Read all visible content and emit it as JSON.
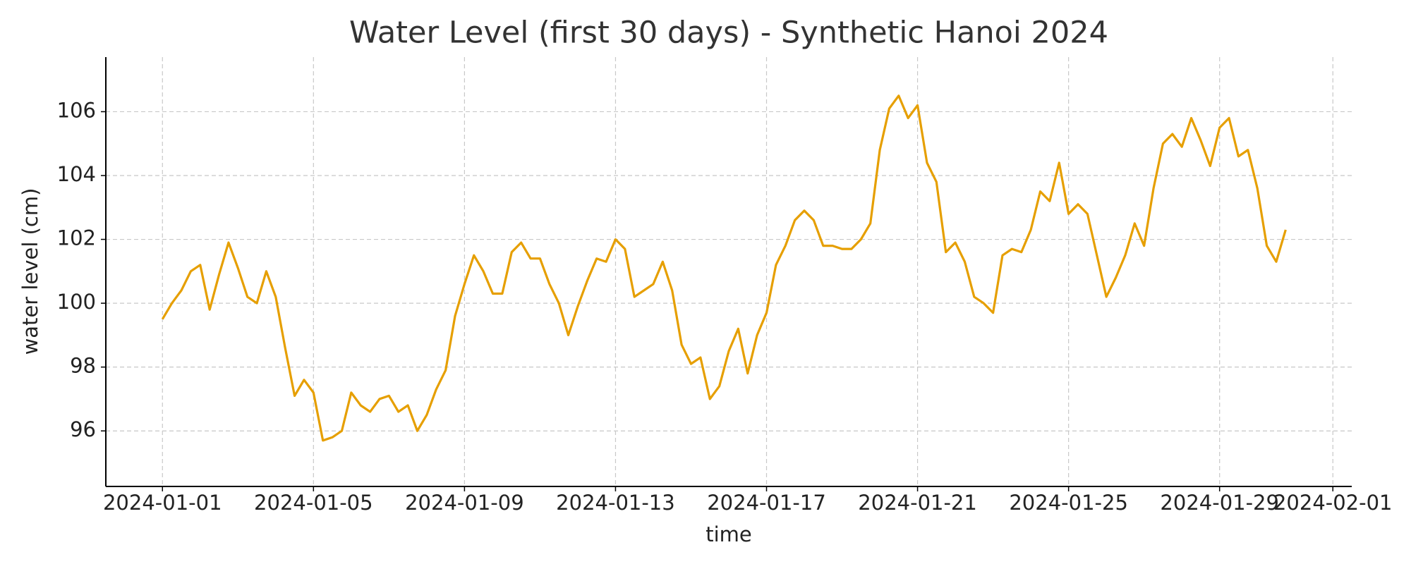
{
  "chart_data": {
    "type": "line",
    "title": "Water Level (first 30 days) - Synthetic Hanoi 2024",
    "x_label": "time",
    "y_label": "water level (cm)",
    "x": [
      "2024-01-01T00:00",
      "2024-01-01T06:00",
      "2024-01-01T12:00",
      "2024-01-01T18:00",
      "2024-01-02T00:00",
      "2024-01-02T06:00",
      "2024-01-02T12:00",
      "2024-01-02T18:00",
      "2024-01-03T00:00",
      "2024-01-03T06:00",
      "2024-01-03T12:00",
      "2024-01-03T18:00",
      "2024-01-04T00:00",
      "2024-01-04T06:00",
      "2024-01-04T12:00",
      "2024-01-04T18:00",
      "2024-01-05T00:00",
      "2024-01-05T06:00",
      "2024-01-05T12:00",
      "2024-01-05T18:00",
      "2024-01-06T00:00",
      "2024-01-06T06:00",
      "2024-01-06T12:00",
      "2024-01-06T18:00",
      "2024-01-07T00:00",
      "2024-01-07T06:00",
      "2024-01-07T12:00",
      "2024-01-07T18:00",
      "2024-01-08T00:00",
      "2024-01-08T06:00",
      "2024-01-08T12:00",
      "2024-01-08T18:00",
      "2024-01-09T00:00",
      "2024-01-09T06:00",
      "2024-01-09T12:00",
      "2024-01-09T18:00",
      "2024-01-10T00:00",
      "2024-01-10T06:00",
      "2024-01-10T12:00",
      "2024-01-10T18:00",
      "2024-01-11T00:00",
      "2024-01-11T06:00",
      "2024-01-11T12:00",
      "2024-01-11T18:00",
      "2024-01-12T00:00",
      "2024-01-12T06:00",
      "2024-01-12T12:00",
      "2024-01-12T18:00",
      "2024-01-13T00:00",
      "2024-01-13T06:00",
      "2024-01-13T12:00",
      "2024-01-13T18:00",
      "2024-01-14T00:00",
      "2024-01-14T06:00",
      "2024-01-14T12:00",
      "2024-01-14T18:00",
      "2024-01-15T00:00",
      "2024-01-15T06:00",
      "2024-01-15T12:00",
      "2024-01-15T18:00",
      "2024-01-16T00:00",
      "2024-01-16T06:00",
      "2024-01-16T12:00",
      "2024-01-16T18:00",
      "2024-01-17T00:00",
      "2024-01-17T06:00",
      "2024-01-17T12:00",
      "2024-01-17T18:00",
      "2024-01-18T00:00",
      "2024-01-18T06:00",
      "2024-01-18T12:00",
      "2024-01-18T18:00",
      "2024-01-19T00:00",
      "2024-01-19T06:00",
      "2024-01-19T12:00",
      "2024-01-19T18:00",
      "2024-01-20T00:00",
      "2024-01-20T06:00",
      "2024-01-20T12:00",
      "2024-01-20T18:00",
      "2024-01-21T00:00",
      "2024-01-21T06:00",
      "2024-01-21T12:00",
      "2024-01-21T18:00",
      "2024-01-22T00:00",
      "2024-01-22T06:00",
      "2024-01-22T12:00",
      "2024-01-22T18:00",
      "2024-01-23T00:00",
      "2024-01-23T06:00",
      "2024-01-23T12:00",
      "2024-01-23T18:00",
      "2024-01-24T00:00",
      "2024-01-24T06:00",
      "2024-01-24T12:00",
      "2024-01-24T18:00",
      "2024-01-25T00:00",
      "2024-01-25T06:00",
      "2024-01-25T12:00",
      "2024-01-25T18:00",
      "2024-01-26T00:00",
      "2024-01-26T06:00",
      "2024-01-26T12:00",
      "2024-01-26T18:00",
      "2024-01-27T00:00",
      "2024-01-27T06:00",
      "2024-01-27T12:00",
      "2024-01-27T18:00",
      "2024-01-28T00:00",
      "2024-01-28T06:00",
      "2024-01-28T12:00",
      "2024-01-28T18:00",
      "2024-01-29T00:00",
      "2024-01-29T06:00",
      "2024-01-29T12:00",
      "2024-01-29T18:00",
      "2024-01-30T00:00",
      "2024-01-30T06:00",
      "2024-01-30T12:00",
      "2024-01-30T18:00"
    ],
    "series": [
      {
        "color": "#e69f00",
        "values": [
          99.5,
          100.0,
          100.4,
          101.0,
          101.2,
          99.8,
          100.9,
          101.9,
          101.1,
          100.2,
          100.0,
          101.0,
          100.2,
          98.6,
          97.1,
          97.6,
          97.2,
          95.7,
          95.8,
          96.0,
          97.2,
          96.8,
          96.6,
          97.0,
          97.1,
          96.6,
          96.8,
          96.0,
          96.5,
          97.3,
          97.9,
          99.6,
          100.6,
          101.5,
          101.0,
          100.3,
          100.3,
          101.6,
          101.9,
          101.4,
          101.4,
          100.6,
          100.0,
          99.0,
          99.9,
          100.7,
          101.4,
          101.3,
          102.0,
          101.7,
          100.2,
          100.4,
          100.6,
          101.3,
          100.4,
          98.7,
          98.1,
          98.3,
          97.0,
          97.4,
          98.5,
          99.2,
          97.8,
          99.0,
          99.7,
          101.2,
          101.8,
          102.6,
          102.9,
          102.6,
          101.8,
          101.8,
          101.7,
          101.7,
          102.0,
          102.5,
          104.8,
          106.1,
          106.5,
          105.8,
          106.2,
          104.4,
          103.8,
          101.6,
          101.9,
          101.3,
          100.2,
          100.0,
          99.7,
          101.5,
          101.7,
          101.6,
          102.3,
          103.5,
          103.2,
          104.4,
          102.8,
          103.1,
          102.8,
          101.5,
          100.2,
          100.8,
          101.5,
          102.5,
          101.8,
          103.6,
          105.0,
          105.3,
          104.9,
          105.8,
          105.1,
          104.3,
          105.5,
          105.8,
          104.6,
          104.8,
          103.6,
          101.8,
          101.3,
          102.3
        ]
      }
    ],
    "xlim": [
      "2023-12-30T12:00",
      "2024-02-01T12:00"
    ],
    "xticks": [
      "2024-01-01",
      "2024-01-05",
      "2024-01-09",
      "2024-01-13",
      "2024-01-17",
      "2024-01-21",
      "2024-01-25",
      "2024-01-29",
      "2024-02-01"
    ],
    "ylim": [
      94.26,
      107.71
    ],
    "yticks": [
      96,
      98,
      100,
      102,
      104,
      106
    ],
    "grid": true
  }
}
